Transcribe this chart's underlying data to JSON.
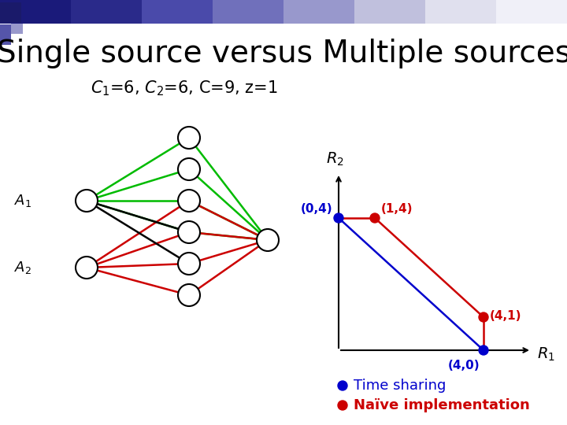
{
  "title": "Single source versus Multiple sources",
  "subtitle": "$C_1$=6, $C_2$=6, C=9, z=1",
  "bg_color": "#ffffff",
  "title_color": "#000000",
  "subtitle_color": "#000000",
  "title_fontsize": 28,
  "subtitle_fontsize": 15,
  "ts_color": "#0000cc",
  "naive_color": "#cc0000",
  "legend_ts_label": "Time sharing",
  "legend_naive_label": "Naïve implementation",
  "green_color": "#00bb00",
  "red_color": "#cc0000",
  "black_color": "#000000",
  "header_colors": [
    "#1a1a7a",
    "#2a2a8a",
    "#4a4aaa",
    "#7070bb",
    "#9898cc",
    "#c0c0dd",
    "#e0e0ee",
    "#f0f0f8"
  ],
  "sq1_color": "#1a1a6a",
  "sq2_color": "#5555aa",
  "sq3_color": "#9999cc"
}
